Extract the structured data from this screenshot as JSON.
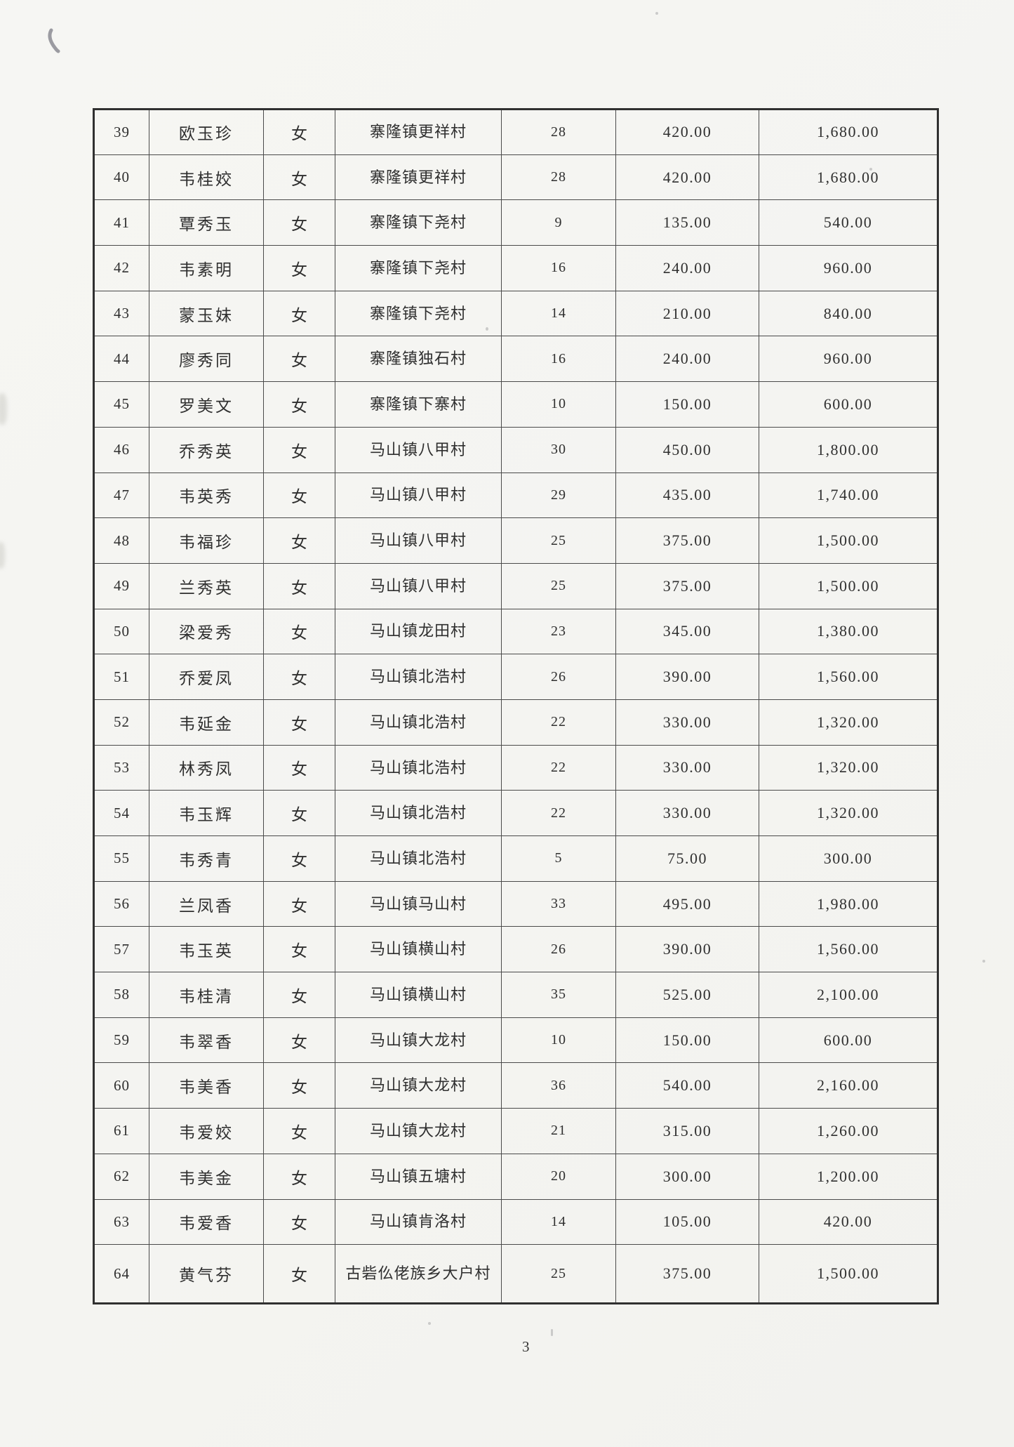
{
  "page_number": "3",
  "colors": {
    "paper": "#f5f5f2",
    "ink": "#2f2f2f",
    "table_line": "#4a4a4a"
  },
  "table": {
    "rows": [
      {
        "no": "39",
        "name": "欧玉珍",
        "gender": "女",
        "village": "寨隆镇更祥村",
        "days": "28",
        "amount": "420.00",
        "total": "1,680.00"
      },
      {
        "no": "40",
        "name": "韦桂姣",
        "gender": "女",
        "village": "寨隆镇更祥村",
        "days": "28",
        "amount": "420.00",
        "total": "1,680.00"
      },
      {
        "no": "41",
        "name": "覃秀玉",
        "gender": "女",
        "village": "寨隆镇下尧村",
        "days": "9",
        "amount": "135.00",
        "total": "540.00"
      },
      {
        "no": "42",
        "name": "韦素明",
        "gender": "女",
        "village": "寨隆镇下尧村",
        "days": "16",
        "amount": "240.00",
        "total": "960.00"
      },
      {
        "no": "43",
        "name": "蒙玉妹",
        "gender": "女",
        "village": "寨隆镇下尧村",
        "days": "14",
        "amount": "210.00",
        "total": "840.00"
      },
      {
        "no": "44",
        "name": "廖秀同",
        "gender": "女",
        "village": "寨隆镇独石村",
        "days": "16",
        "amount": "240.00",
        "total": "960.00"
      },
      {
        "no": "45",
        "name": "罗美文",
        "gender": "女",
        "village": "寨隆镇下寨村",
        "days": "10",
        "amount": "150.00",
        "total": "600.00"
      },
      {
        "no": "46",
        "name": "乔秀英",
        "gender": "女",
        "village": "马山镇八甲村",
        "days": "30",
        "amount": "450.00",
        "total": "1,800.00"
      },
      {
        "no": "47",
        "name": "韦英秀",
        "gender": "女",
        "village": "马山镇八甲村",
        "days": "29",
        "amount": "435.00",
        "total": "1,740.00"
      },
      {
        "no": "48",
        "name": "韦福珍",
        "gender": "女",
        "village": "马山镇八甲村",
        "days": "25",
        "amount": "375.00",
        "total": "1,500.00"
      },
      {
        "no": "49",
        "name": "兰秀英",
        "gender": "女",
        "village": "马山镇八甲村",
        "days": "25",
        "amount": "375.00",
        "total": "1,500.00"
      },
      {
        "no": "50",
        "name": "梁爱秀",
        "gender": "女",
        "village": "马山镇龙田村",
        "days": "23",
        "amount": "345.00",
        "total": "1,380.00"
      },
      {
        "no": "51",
        "name": "乔爱凤",
        "gender": "女",
        "village": "马山镇北浩村",
        "days": "26",
        "amount": "390.00",
        "total": "1,560.00"
      },
      {
        "no": "52",
        "name": "韦延金",
        "gender": "女",
        "village": "马山镇北浩村",
        "days": "22",
        "amount": "330.00",
        "total": "1,320.00"
      },
      {
        "no": "53",
        "name": "林秀凤",
        "gender": "女",
        "village": "马山镇北浩村",
        "days": "22",
        "amount": "330.00",
        "total": "1,320.00"
      },
      {
        "no": "54",
        "name": "韦玉辉",
        "gender": "女",
        "village": "马山镇北浩村",
        "days": "22",
        "amount": "330.00",
        "total": "1,320.00"
      },
      {
        "no": "55",
        "name": "韦秀青",
        "gender": "女",
        "village": "马山镇北浩村",
        "days": "5",
        "amount": "75.00",
        "total": "300.00"
      },
      {
        "no": "56",
        "name": "兰凤香",
        "gender": "女",
        "village": "马山镇马山村",
        "days": "33",
        "amount": "495.00",
        "total": "1,980.00"
      },
      {
        "no": "57",
        "name": "韦玉英",
        "gender": "女",
        "village": "马山镇横山村",
        "days": "26",
        "amount": "390.00",
        "total": "1,560.00"
      },
      {
        "no": "58",
        "name": "韦桂清",
        "gender": "女",
        "village": "马山镇横山村",
        "days": "35",
        "amount": "525.00",
        "total": "2,100.00"
      },
      {
        "no": "59",
        "name": "韦翠香",
        "gender": "女",
        "village": "马山镇大龙村",
        "days": "10",
        "amount": "150.00",
        "total": "600.00"
      },
      {
        "no": "60",
        "name": "韦美香",
        "gender": "女",
        "village": "马山镇大龙村",
        "days": "36",
        "amount": "540.00",
        "total": "2,160.00"
      },
      {
        "no": "61",
        "name": "韦爱姣",
        "gender": "女",
        "village": "马山镇大龙村",
        "days": "21",
        "amount": "315.00",
        "total": "1,260.00"
      },
      {
        "no": "62",
        "name": "韦美金",
        "gender": "女",
        "village": "马山镇五塘村",
        "days": "20",
        "amount": "300.00",
        "total": "1,200.00"
      },
      {
        "no": "63",
        "name": "韦爱香",
        "gender": "女",
        "village": "马山镇肯洛村",
        "days": "14",
        "amount": "105.00",
        "total": "420.00"
      },
      {
        "no": "64",
        "name": "黄气芬",
        "gender": "女",
        "village": "古砦仫佬族乡大户村",
        "days": "25",
        "amount": "375.00",
        "total": "1,500.00"
      }
    ]
  }
}
